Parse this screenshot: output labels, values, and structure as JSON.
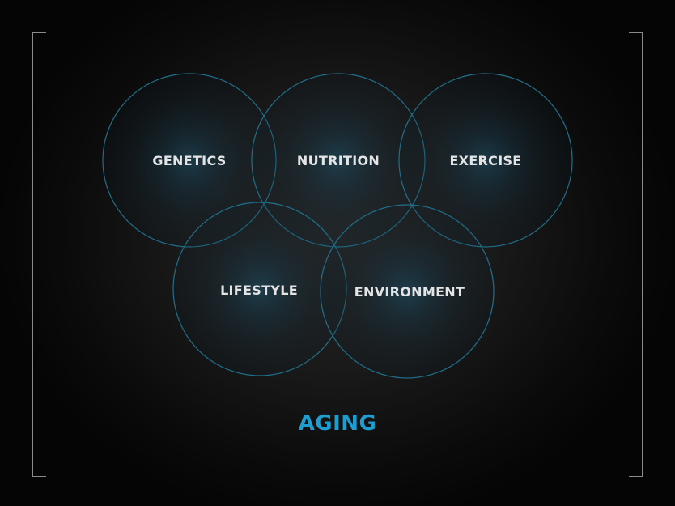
{
  "diagram": {
    "circles": [
      {
        "label": "GENETICS"
      },
      {
        "label": "NUTRITION"
      },
      {
        "label": "EXERCISE"
      },
      {
        "label": "LIFESTYLE"
      },
      {
        "label": "ENVIRONMENT"
      }
    ],
    "title": "AGING"
  },
  "colors": {
    "circle_stroke": "#1f6f8a",
    "circle_glow": "#1b4f66",
    "title": "#1e9dd1",
    "label": "#e4e4e4",
    "bracket": "#8a8a8a"
  }
}
